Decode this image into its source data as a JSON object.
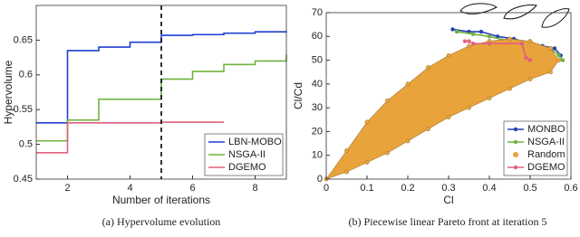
{
  "chart_data": [
    {
      "type": "line",
      "step": true,
      "xlabel": "Number of iterations",
      "ylabel": "Hypervolume",
      "caption": "(a) Hypervolume evolution",
      "x": [
        1,
        2,
        3,
        4,
        5,
        6,
        7,
        8,
        9
      ],
      "xlim": [
        1,
        9
      ],
      "xticks": [
        2,
        4,
        6,
        8
      ],
      "ylim": [
        0.45,
        0.7
      ],
      "yticks": [
        0.45,
        0.5,
        0.55,
        0.6,
        0.65
      ],
      "vline": 5,
      "legend": "lower-right",
      "series": [
        {
          "name": "LBN-MOBO",
          "color": "#1f3fd0",
          "values": [
            0.531,
            0.635,
            0.64,
            0.647,
            0.657,
            0.658,
            0.66,
            0.662,
            0.663
          ]
        },
        {
          "name": "NSGA-II",
          "color": "#6db33f",
          "values": [
            0.505,
            0.535,
            0.565,
            0.565,
            0.594,
            0.605,
            0.615,
            0.62,
            0.629
          ]
        },
        {
          "name": "DGEMO",
          "color": "#e0607e",
          "values": [
            0.488,
            0.531,
            0.531,
            0.531,
            0.532,
            0.532,
            0.532,
            null,
            null
          ]
        }
      ]
    },
    {
      "type": "scatter",
      "xlabel": "Cl",
      "ylabel": "Cl/Cd",
      "caption": "(b) Piecewise linear Pareto front at iteration 5",
      "xlim": [
        0,
        0.6
      ],
      "xticks": [
        0,
        0.1,
        0.2,
        0.3,
        0.4,
        0.5,
        0.6
      ],
      "ylim": [
        0,
        70
      ],
      "yticks": [
        0,
        10,
        20,
        30,
        40,
        50,
        60,
        70
      ],
      "legend": "lower-right",
      "series": [
        {
          "name": "MONBO",
          "color": "#2a3fb0",
          "lines": true,
          "x": [
            0.31,
            0.35,
            0.38,
            0.42,
            0.46,
            0.5,
            0.53,
            0.56,
            0.575
          ],
          "values": [
            63,
            62,
            62,
            60,
            59,
            57,
            56,
            55,
            52
          ]
        },
        {
          "name": "NSGA-II",
          "color": "#6db33f",
          "lines": true,
          "x": [
            0.32,
            0.36,
            0.4,
            0.45,
            0.5,
            0.55,
            0.57,
            0.58
          ],
          "values": [
            62,
            61,
            60,
            58,
            56,
            55,
            52,
            50
          ]
        },
        {
          "name": "Random",
          "color": "#e8a33a",
          "cloud": true,
          "x": [
            0,
            0.05,
            0.1,
            0.15,
            0.2,
            0.25,
            0.3,
            0.35,
            0.4,
            0.45,
            0.5,
            0.55,
            0.57,
            0.55,
            0.5,
            0.45,
            0.4,
            0.35,
            0.3,
            0.25,
            0.2,
            0.15,
            0.1,
            0.05
          ],
          "values": [
            0,
            12,
            24,
            33,
            40,
            47,
            52,
            56,
            58,
            59,
            58,
            55,
            50,
            45,
            42,
            38,
            34,
            30,
            26,
            21,
            16,
            11,
            7,
            3
          ]
        },
        {
          "name": "DGEMO",
          "color": "#e0607e",
          "lines": true,
          "x": [
            0.34,
            0.35,
            0.36,
            0.4,
            0.48,
            0.49,
            0.5
          ],
          "values": [
            58,
            58,
            57,
            57,
            57,
            51,
            50
          ]
        }
      ]
    }
  ]
}
